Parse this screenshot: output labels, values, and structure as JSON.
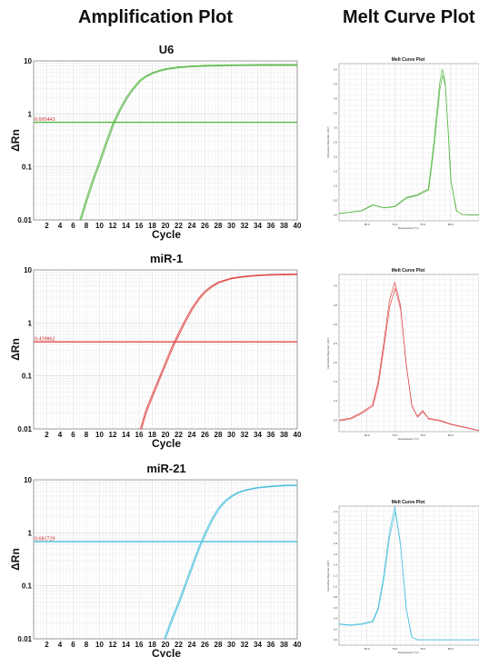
{
  "headers": {
    "amplification": "Amplification Plot",
    "melt": "Melt Curve Plot"
  },
  "colors": {
    "U6": "#55b843",
    "miR-1": "#e04848",
    "miR-21": "#4cc0de"
  },
  "chart_data": [
    {
      "type": "line",
      "title": "U6",
      "xlabel": "Cycle",
      "ylabel": "ΔRn",
      "yscale": "log",
      "xlim": [
        0,
        40
      ],
      "ylim": [
        0.01,
        10
      ],
      "xticks": [
        "2",
        "4",
        "6",
        "8",
        "10",
        "12",
        "14",
        "16",
        "18",
        "20",
        "22",
        "24",
        "26",
        "28",
        "30",
        "32",
        "34",
        "36",
        "38",
        "40"
      ],
      "yticks": [
        "0.01",
        "0.1",
        "1",
        "10"
      ],
      "threshold": 0.695443,
      "threshold_label": "0.695443",
      "grid": true,
      "series": [
        {
          "x": [
            7,
            8,
            9,
            10,
            11,
            12,
            13,
            14,
            15,
            16,
            17,
            18,
            19,
            20,
            22,
            24,
            26,
            28,
            30,
            35,
            40
          ],
          "y": [
            0.01,
            0.025,
            0.06,
            0.13,
            0.3,
            0.65,
            1.2,
            2.0,
            3.0,
            4.2,
            5.2,
            6.0,
            6.6,
            7.1,
            7.7,
            8.0,
            8.2,
            8.3,
            8.4,
            8.5,
            8.5
          ]
        }
      ]
    },
    {
      "type": "line",
      "title": "miR-1",
      "xlabel": "Cycle",
      "ylabel": "ΔRn",
      "yscale": "log",
      "xlim": [
        0,
        40
      ],
      "ylim": [
        0.01,
        10
      ],
      "xticks": [
        "2",
        "4",
        "6",
        "8",
        "10",
        "12",
        "14",
        "16",
        "18",
        "20",
        "22",
        "24",
        "26",
        "28",
        "30",
        "32",
        "34",
        "36",
        "38",
        "40"
      ],
      "yticks": [
        "0.01",
        "0.1",
        "1",
        "10"
      ],
      "threshold": 0.439862,
      "threshold_label": "0.439862",
      "grid": true,
      "series": [
        {
          "x": [
            16.2,
            17,
            18,
            19,
            20,
            21,
            22,
            23,
            24,
            25,
            26,
            27,
            28,
            30,
            32,
            34,
            36,
            38,
            40
          ],
          "y": [
            0.01,
            0.022,
            0.045,
            0.09,
            0.18,
            0.36,
            0.65,
            1.15,
            1.9,
            2.9,
            4.0,
            5.0,
            5.9,
            7.0,
            7.6,
            8.0,
            8.2,
            8.3,
            8.4
          ]
        }
      ]
    },
    {
      "type": "line",
      "title": "miR-21",
      "xlabel": "Cycle",
      "ylabel": "ΔRn",
      "yscale": "log",
      "xlim": [
        0,
        40
      ],
      "ylim": [
        0.01,
        10
      ],
      "xticks": [
        "2",
        "4",
        "6",
        "8",
        "10",
        "12",
        "14",
        "16",
        "18",
        "20",
        "22",
        "24",
        "26",
        "28",
        "30",
        "32",
        "34",
        "36",
        "38",
        "40"
      ],
      "yticks": [
        "0.01",
        "0.1",
        "1",
        "10"
      ],
      "threshold": 0.681729,
      "threshold_label": "0.681729",
      "grid": true,
      "series": [
        {
          "x": [
            19.8,
            21,
            22,
            23,
            24,
            25,
            26,
            27,
            28,
            29,
            30,
            31,
            32,
            34,
            36,
            38,
            40
          ],
          "y": [
            0.01,
            0.025,
            0.05,
            0.11,
            0.24,
            0.52,
            1.0,
            1.8,
            2.9,
            4.0,
            5.0,
            5.8,
            6.4,
            7.2,
            7.6,
            7.9,
            8.0
          ]
        }
      ]
    },
    {
      "type": "line",
      "title": "Melt Curve Plot",
      "xlabel": "Temperature (°C)",
      "ylabel": "Derivative Reporter (-Rn')",
      "xlim": [
        60,
        95
      ],
      "grid": true,
      "xticks": [
        "65.0",
        "70.0",
        "75.0",
        "80.0",
        "85.0",
        "90.0",
        "95.0"
      ],
      "yticks": [
        "0.0",
        "0.5",
        "1.0",
        "1.5",
        "2.0",
        "2.5",
        "3.0",
        "3.5",
        "4.0",
        "4.5",
        "5.0"
      ],
      "ylim": [
        -0.2,
        5.2
      ],
      "series": [
        {
          "x": [
            60,
            64,
            66,
            68,
            70,
            72,
            74,
            76,
            77,
            78,
            78.5,
            79,
            79.5,
            80,
            81,
            82,
            84,
            88,
            95
          ],
          "y": [
            0.05,
            0.15,
            0.35,
            0.25,
            0.3,
            0.6,
            0.7,
            0.9,
            2.5,
            4.5,
            5.0,
            4.6,
            3.0,
            1.2,
            0.15,
            0.02,
            0,
            0,
            0
          ]
        }
      ]
    },
    {
      "type": "line",
      "title": "Melt Curve Plot",
      "xlabel": "Temperature (°C)",
      "ylabel": "Derivative Reporter (-Rn')",
      "xlim": [
        60,
        95
      ],
      "grid": true,
      "xticks": [
        "65.0",
        "70.0",
        "75.0",
        "80.0",
        "85.0",
        "90.0",
        "95.0"
      ],
      "yticks": [
        "0.5",
        "1.0",
        "1.5",
        "2.0",
        "2.5",
        "3.0",
        "3.5",
        "4.0"
      ],
      "ylim": [
        0.2,
        4.3
      ],
      "series": [
        {
          "x": [
            60,
            62,
            64,
            66,
            67,
            68,
            69,
            70,
            71,
            72,
            73,
            74,
            75,
            76,
            78,
            80,
            83,
            86,
            90,
            95
          ],
          "y": [
            0.5,
            0.55,
            0.7,
            0.9,
            1.5,
            2.5,
            3.6,
            4.1,
            3.5,
            2.0,
            0.9,
            0.6,
            0.75,
            0.55,
            0.5,
            0.4,
            0.3,
            0.2,
            0.18,
            0.15
          ]
        }
      ]
    },
    {
      "type": "line",
      "title": "Melt Curve Plot",
      "xlabel": "Temperature (°C)",
      "ylabel": "Derivative Reporter (-Rn')",
      "xlim": [
        60,
        95
      ],
      "grid": true,
      "xticks": [
        "65.0",
        "70.0",
        "75.0",
        "80.0",
        "85.0",
        "90.0",
        "95.0"
      ],
      "yticks": [
        "0.0",
        "0.2",
        "0.4",
        "0.6",
        "0.8",
        "1.0",
        "1.2",
        "1.4",
        "1.6",
        "1.8",
        "2.0",
        "2.2",
        "2.4"
      ],
      "ylim": [
        -0.1,
        2.5
      ],
      "series": [
        {
          "x": [
            60,
            62,
            64,
            66,
            67,
            68,
            69,
            70,
            71,
            72,
            73,
            74,
            76,
            80,
            85,
            90,
            95
          ],
          "y": [
            0.3,
            0.28,
            0.3,
            0.35,
            0.6,
            1.2,
            2.0,
            2.5,
            1.8,
            0.6,
            0.05,
            0,
            0,
            0,
            0,
            0,
            0
          ]
        }
      ]
    }
  ]
}
